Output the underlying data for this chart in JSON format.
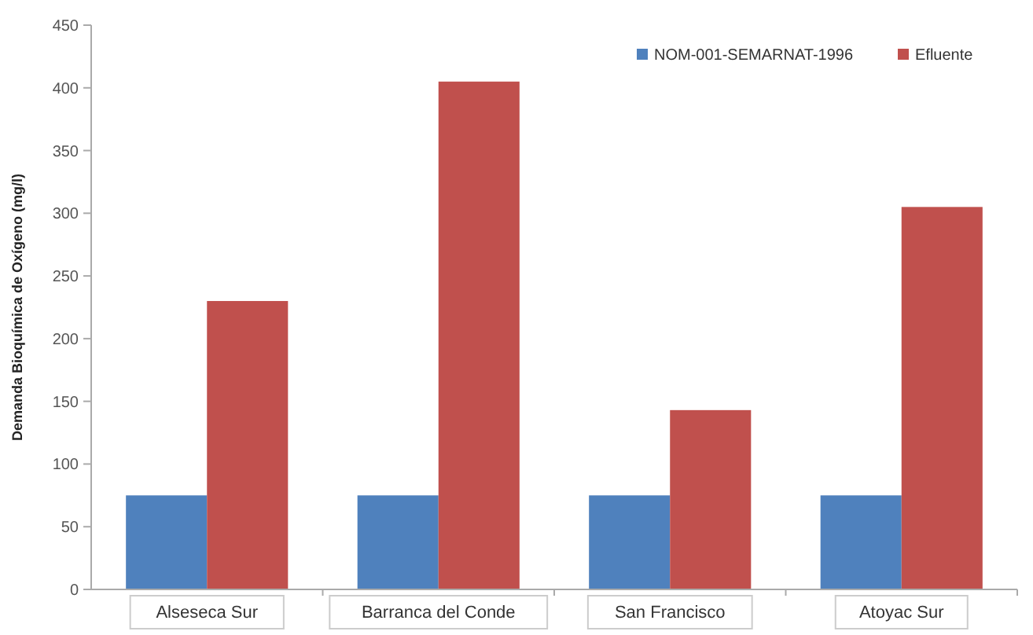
{
  "chart_data": {
    "type": "bar",
    "ylabel": "Demanda Bioquímica de Oxígeno (mg/l)",
    "categories": [
      "Alseseca Sur",
      "Barranca del Conde",
      "San Francisco",
      "Atoyac Sur"
    ],
    "series": [
      {
        "name": "NOM-001-SEMARNAT-1996",
        "color": "#4f81bd",
        "values": [
          75,
          75,
          75,
          75
        ]
      },
      {
        "name": "Efluente",
        "color": "#c0504d",
        "values": [
          230,
          405,
          143,
          305
        ]
      }
    ],
    "ylim": [
      0,
      450
    ],
    "yticks": [
      0,
      50,
      100,
      150,
      200,
      250,
      300,
      350,
      400,
      450
    ],
    "grid": false,
    "legend": "top right"
  }
}
